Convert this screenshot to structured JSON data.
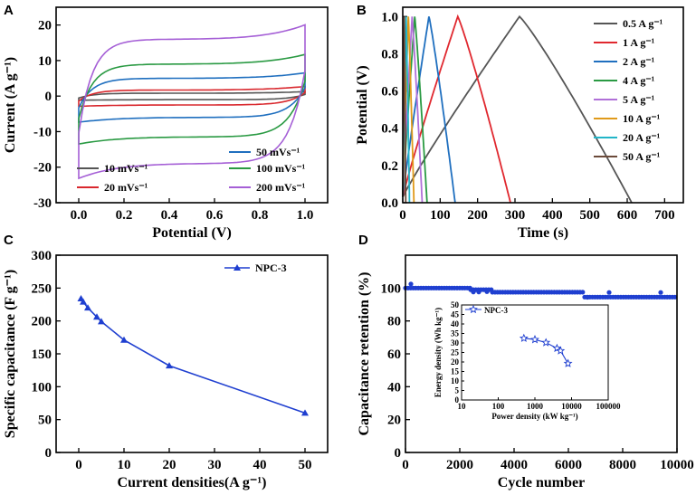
{
  "chart_data": [
    {
      "panel": "A",
      "type": "line",
      "title": "",
      "xlabel": "Potential (V)",
      "ylabel": "Current (A g⁻¹)",
      "xlim": [
        -0.1,
        1.1
      ],
      "ylim": [
        -30,
        25
      ],
      "xticks": [
        "0.0",
        "0.2",
        "0.4",
        "0.6",
        "0.8",
        "1.0"
      ],
      "yticks": [
        "-30",
        "-20",
        "-10",
        "0",
        "10",
        "20"
      ],
      "series": [
        {
          "name": "10 mVs⁻¹",
          "color": "#555555",
          "upper_plateau": 0.8,
          "lower_plateau": -1.0,
          "top_end": 1.3,
          "bottom_start": -1.2
        },
        {
          "name": "20 mVs⁻¹",
          "color": "#d9282e",
          "upper_plateau": 1.7,
          "lower_plateau": -2.5,
          "top_end": 2.8,
          "bottom_start": -2.9
        },
        {
          "name": "50 mVs⁻¹",
          "color": "#1f6fbf",
          "upper_plateau": 5.0,
          "lower_plateau": -6.0,
          "top_end": 6.7,
          "bottom_start": -7.5
        },
        {
          "name": "100 mVs⁻¹",
          "color": "#2a9a43",
          "upper_plateau": 9.0,
          "lower_plateau": -11.5,
          "top_end": 12.0,
          "bottom_start": -13.7
        },
        {
          "name": "200 mVs⁻¹",
          "color": "#a55fd6",
          "upper_plateau": 16.0,
          "lower_plateau": -19.0,
          "top_end": 20.5,
          "bottom_start": -23.6
        }
      ]
    },
    {
      "panel": "B",
      "type": "line",
      "title": "",
      "xlabel": "Time (s)",
      "ylabel": "Potential (V)",
      "xlim": [
        0,
        750
      ],
      "ylim": [
        0,
        1.05
      ],
      "xticks": [
        "0",
        "100",
        "200",
        "300",
        "400",
        "500",
        "600",
        "700"
      ],
      "yticks": [
        "0.0",
        "0.2",
        "0.4",
        "0.6",
        "0.8",
        "1.0"
      ],
      "series": [
        {
          "name": "0.5 A g⁻¹",
          "color": "#555555",
          "t_peak": 312,
          "t_end": 612
        },
        {
          "name": "1 A g⁻¹",
          "color": "#e0282f",
          "t_peak": 147,
          "t_end": 288
        },
        {
          "name": "2 A g⁻¹",
          "color": "#1f6fbf",
          "t_peak": 70,
          "t_end": 140
        },
        {
          "name": "4 A g⁻¹",
          "color": "#2a9a43",
          "t_peak": 32,
          "t_end": 65
        },
        {
          "name": "5 A g⁻¹",
          "color": "#b070d8",
          "t_peak": 25,
          "t_end": 52
        },
        {
          "name": "10 A g⁻¹",
          "color": "#e09a1a",
          "t_peak": 15,
          "t_end": 30
        },
        {
          "name": "20 A g⁻¹",
          "color": "#22b5c8",
          "t_peak": 9,
          "t_end": 18
        },
        {
          "name": "50 A g⁻¹",
          "color": "#6b4a3a",
          "t_peak": 4,
          "t_end": 8
        }
      ]
    },
    {
      "panel": "C",
      "type": "line",
      "title": "",
      "xlabel": "Current  densities(A g⁻¹)",
      "ylabel": "Specific capacitance (F g⁻¹)",
      "xlim": [
        -5,
        55
      ],
      "ylim": [
        0,
        300
      ],
      "xticks": [
        "0",
        "10",
        "20",
        "30",
        "40",
        "50"
      ],
      "yticks": [
        "0",
        "50",
        "100",
        "150",
        "200",
        "250",
        "300"
      ],
      "series": [
        {
          "name": "NPC-3",
          "color": "#1f3fd0",
          "x": [
            0.5,
            1,
            2,
            4,
            5,
            10,
            20,
            50
          ],
          "y": [
            234,
            229,
            220,
            206,
            199,
            171,
            132,
            60
          ]
        }
      ]
    },
    {
      "panel": "D",
      "type": "scatter",
      "title": "",
      "xlabel": "Cycle number",
      "ylabel": "Capacitance retention (%)",
      "xlim": [
        0,
        10000
      ],
      "ylim": [
        0,
        120
      ],
      "xticks": [
        "0",
        "2000",
        "4000",
        "6000",
        "8000",
        "10000"
      ],
      "yticks": [
        "0",
        "20",
        "40",
        "60",
        "80",
        "100"
      ],
      "series": [
        {
          "name": "retention",
          "color": "#1f3fd0",
          "segments": [
            [
              0,
              2400,
              100
            ],
            [
              2400,
              3200,
              99
            ],
            [
              3200,
              6600,
              97.5
            ],
            [
              6600,
              10000,
              94.5
            ]
          ],
          "outliers": [
            [
              200,
              102.5
            ],
            [
              2500,
              97.6
            ],
            [
              2700,
              97.6
            ],
            [
              3000,
              97.8
            ],
            [
              6700,
              94.4
            ],
            [
              7500,
              97.3
            ],
            [
              9400,
              97.3
            ]
          ]
        }
      ],
      "inset": {
        "type": "line",
        "xlabel": "Power density (kW kg⁻¹)",
        "ylabel": "Energy density (Wh kg⁻¹)",
        "xscale": "log",
        "xlim": [
          10,
          100000
        ],
        "ylim": [
          0,
          50
        ],
        "xticks": [
          "10",
          "100",
          "1000",
          "10000",
          "100000"
        ],
        "yticks": [
          "0",
          "5",
          "10",
          "15",
          "20",
          "25",
          "30",
          "35",
          "40",
          "45",
          "50"
        ],
        "series": [
          {
            "name": "NPC-3",
            "color": "#1f3fd0",
            "x": [
              500,
              1000,
              2000,
              4000,
              5000,
              8000
            ],
            "y": [
              32.5,
              31.8,
              30.2,
              27.2,
              25.9,
              19.2
            ]
          }
        ]
      }
    }
  ],
  "panels": {
    "a": {
      "label": "A"
    },
    "b": {
      "label": "B"
    },
    "c": {
      "label": "C"
    },
    "d": {
      "label": "D"
    }
  }
}
